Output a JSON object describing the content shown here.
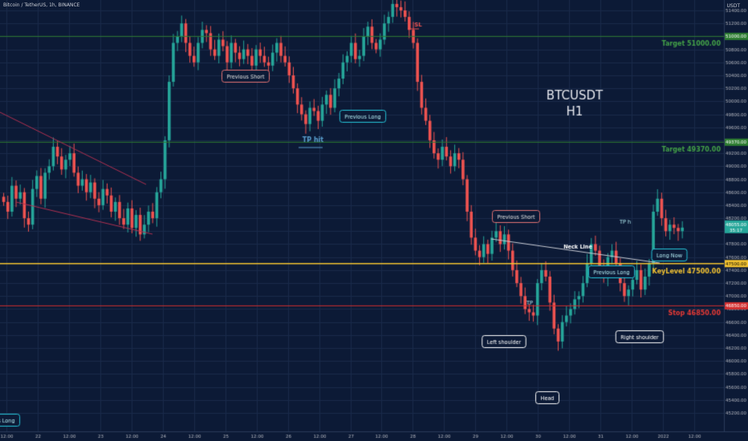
{
  "header": {
    "symbol": "Bitcoin / TetherUS, 1h, BINANCE",
    "unit": "USDT"
  },
  "colors": {
    "background": "#0c1a36",
    "up": "#26a69a",
    "down": "#ef5350",
    "target_line": "#2e7d32",
    "key_line": "#f2c230",
    "stop_line": "#d32f2f",
    "grid": "#1a2a4a",
    "axis_text": "#b2b5be",
    "accent": "#26c6da"
  },
  "chart_data": {
    "type": "candlestick",
    "title": "BTCUSDT",
    "subtitle": "H1",
    "y_axis": {
      "ticks": [
        51400,
        51200,
        51000,
        50800,
        50600,
        50400,
        50200,
        50000,
        49800,
        49600,
        49400,
        49200,
        49000,
        48800,
        48600,
        48400,
        48200,
        48000,
        47800,
        47600,
        47400,
        47200,
        47000,
        46800,
        46600,
        46400,
        46200,
        46000,
        45800,
        45600,
        45400,
        45200
      ],
      "ylim": [
        45150,
        51550
      ]
    },
    "x_axis": {
      "ticks": [
        "12:00",
        "22",
        "12:00",
        "23",
        "12:00",
        "24",
        "12:00",
        "25",
        "12:00",
        "26",
        "12:00",
        "27",
        "12:00",
        "28",
        "12:00",
        "29",
        "12:00",
        "30",
        "12:00",
        "31",
        "12:00",
        "2022",
        "12:00"
      ]
    },
    "levels": [
      {
        "label": "Target 51000.00",
        "value": 51000,
        "tag": "51000.00",
        "kind": "target"
      },
      {
        "label": "Target 49370.00",
        "value": 49370,
        "tag": "49370.00",
        "kind": "target"
      },
      {
        "label": "KeyLevel 47500.00",
        "value": 47500,
        "tag": "47500.00",
        "kind": "key"
      },
      {
        "label": "Stop 46850.00",
        "value": 46850,
        "tag": "46850.00",
        "kind": "stop"
      }
    ],
    "current_price": {
      "value": 48055,
      "tag": "48055.00",
      "tag2": "35:17"
    },
    "annotations": [
      {
        "text": "Previous Short",
        "kind": "short"
      },
      {
        "text": "Previous Long",
        "kind": "long"
      },
      {
        "text": "TP hit",
        "kind": "tp"
      },
      {
        "text": "SL",
        "kind": "sl"
      },
      {
        "text": "Previous Short",
        "kind": "short"
      },
      {
        "text": "Neck Line",
        "kind": "neck"
      },
      {
        "text": "Previous Long",
        "kind": "long"
      },
      {
        "text": "TP",
        "kind": "tp-small"
      },
      {
        "text": "TP h",
        "kind": "tp-small"
      },
      {
        "text": "Long Now",
        "kind": "long"
      },
      {
        "text": "Left shoulder",
        "kind": "pattern"
      },
      {
        "text": "Head",
        "kind": "pattern"
      },
      {
        "text": "Right shoulder",
        "kind": "pattern"
      },
      {
        "text": "s Long",
        "kind": "long"
      }
    ],
    "closes": [
      48450,
      48300,
      48700,
      48500,
      48600,
      48200,
      48100,
      48650,
      48850,
      48500,
      48900,
      49000,
      49300,
      49150,
      48950,
      49100,
      49200,
      48900,
      48700,
      48800,
      48600,
      48750,
      48500,
      48400,
      48650,
      48550,
      48300,
      48450,
      48200,
      48100,
      48350,
      48050,
      48250,
      47950,
      48100,
      48300,
      48200,
      48600,
      48800,
      49400,
      50300,
      50900,
      51000,
      51200,
      50900,
      50700,
      50600,
      50900,
      51100,
      51050,
      50800,
      50700,
      50950,
      50850,
      50600,
      50900,
      50750,
      50650,
      50800,
      50700,
      50550,
      50800,
      50700,
      50600,
      50550,
      50750,
      50900,
      50700,
      50600,
      50400,
      50200,
      49950,
      49800,
      49650,
      49900,
      49850,
      49700,
      49950,
      50100,
      49900,
      50200,
      50350,
      50600,
      50700,
      50900,
      50650,
      50700,
      51000,
      51150,
      50900,
      50800,
      50950,
      51200,
      51300,
      51500,
      51450,
      51400,
      51300,
      51100,
      50900,
      50300,
      49900,
      49700,
      49400,
      49200,
      49100,
      49300,
      49150,
      49000,
      49200,
      49100,
      48800,
      48300,
      47900,
      47700,
      47600,
      47800,
      47650,
      47900,
      48000,
      47800,
      47950,
      47700,
      47400,
      47200,
      47000,
      46800,
      46750,
      46700,
      47200,
      47400,
      47300,
      46900,
      46500,
      46300,
      46600,
      46700,
      46800,
      46950,
      47000,
      47200,
      47500,
      47800,
      47700,
      47450,
      47300,
      47600,
      47700,
      47500,
      47200,
      47000,
      47100,
      47250,
      47400,
      47100,
      47300,
      47500,
      48300,
      48500,
      48200,
      48000,
      48100,
      48050,
      48000,
      48055
    ]
  }
}
